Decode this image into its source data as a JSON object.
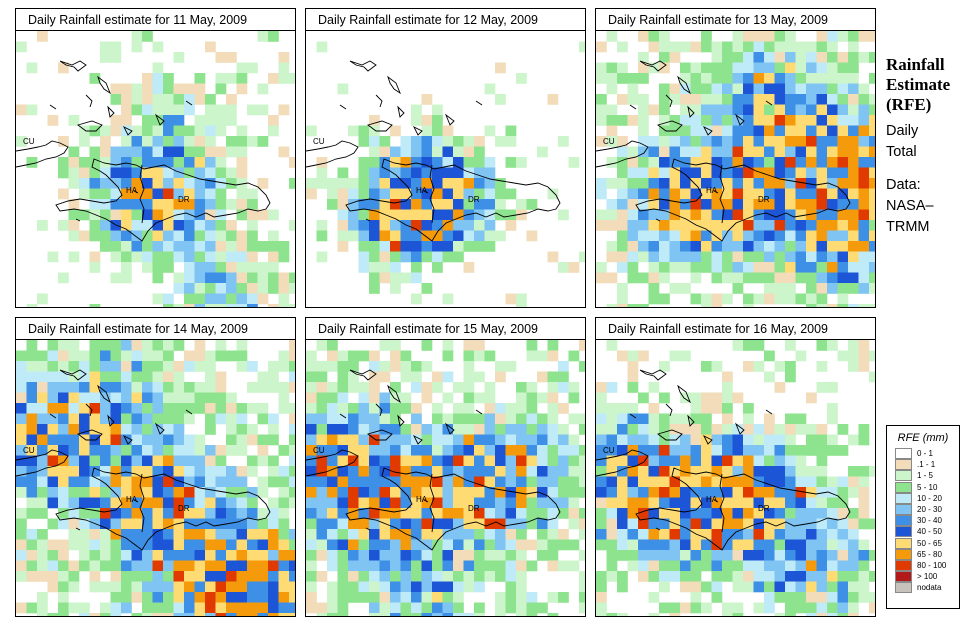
{
  "panels": [
    {
      "title": "Daily Rainfall estimate for  11 May, 2009",
      "intensity": 1
    },
    {
      "title": "Daily Rainfall estimate for  12 May, 2009",
      "intensity": 0
    },
    {
      "title": "Daily Rainfall estimate for  13 May, 2009",
      "intensity": 3
    },
    {
      "title": "Daily Rainfall estimate for  14 May, 2009",
      "intensity": 4
    },
    {
      "title": "Daily Rainfall estimate for  15 May, 2009",
      "intensity": 3
    },
    {
      "title": "Daily Rainfall estimate for  16 May, 2009",
      "intensity": 2
    }
  ],
  "map_labels": {
    "cuba": "CU",
    "haiti": "HA",
    "dominican_republic": "DR"
  },
  "sidebar": {
    "title_line1": "Rainfall",
    "title_line2": "Estimate",
    "title_line3": "(RFE)",
    "period_line1": "Daily",
    "period_line2": "Total",
    "source_line1": "Data:",
    "source_line2": "NASA–",
    "source_line3": "TRMM"
  },
  "legend": {
    "title": "RFE (mm)",
    "items": [
      {
        "label": "0 - 1",
        "color": "#ffffff"
      },
      {
        "label": ".1 - 1",
        "color": "#f2dcba"
      },
      {
        "label": "1 - 5",
        "color": "#ccf5cc"
      },
      {
        "label": "5 - 10",
        "color": "#8ee38e"
      },
      {
        "label": "10 - 20",
        "color": "#bfeaf7"
      },
      {
        "label": "20 - 30",
        "color": "#7fc4f2"
      },
      {
        "label": "30 - 40",
        "color": "#3e8fe6"
      },
      {
        "label": "40 - 50",
        "color": "#1c55d6"
      },
      {
        "label": "50 - 65",
        "color": "#ffdc73"
      },
      {
        "label": "65 - 80",
        "color": "#f59a0a"
      },
      {
        "label": "80 - 100",
        "color": "#e03a00"
      },
      {
        "label": "> 100",
        "color": "#b21a1a"
      },
      {
        "label": "nodata",
        "color": "#c7c2bc"
      }
    ]
  }
}
